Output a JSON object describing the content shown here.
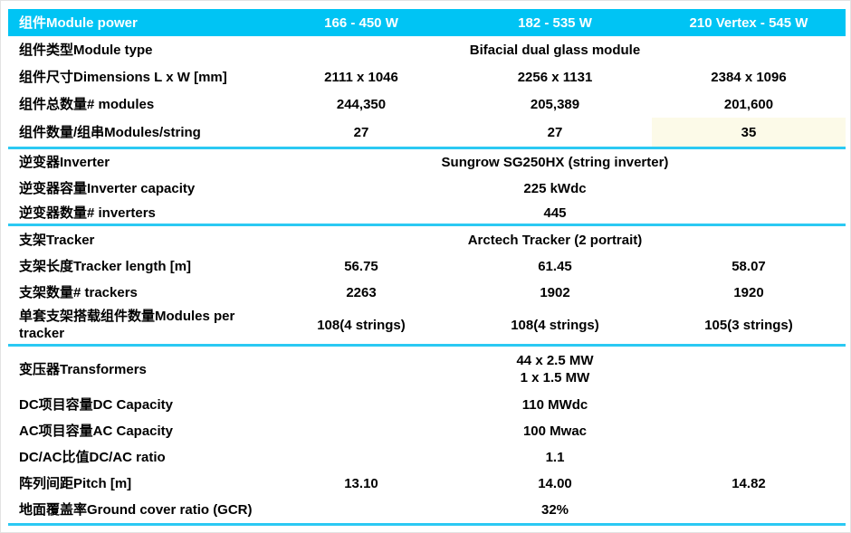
{
  "colors": {
    "header_background": "#00C4F4",
    "divider": "#2BC9F3",
    "highlight_cell": "#FCFAE8",
    "header_text": "#ffffff",
    "body_text": "#000000"
  },
  "table": {
    "header": {
      "label": "组件Module power",
      "values": [
        "166 - 450 W",
        "182 - 535 W",
        "210 Vertex - 545 W"
      ]
    },
    "rows": [
      {
        "label": "组件类型Module type",
        "span_value": "Bifacial dual glass module"
      },
      {
        "label": "组件尺寸Dimensions L x W [mm]",
        "values": [
          "2111 x 1046",
          "2256 x 1131",
          "2384 x 1096"
        ]
      },
      {
        "label": "组件总数量# modules",
        "values": [
          "244,350",
          "205,389",
          "201,600"
        ]
      },
      {
        "label": "组件数量/组串Modules/string",
        "values": [
          "27",
          "27",
          "35"
        ],
        "highlighted_column": 3
      },
      {
        "label": "逆变器Inverter",
        "span_value": "Sungrow SG250HX (string inverter)"
      },
      {
        "label": "逆变器容量Inverter capacity",
        "span_value": "225 kWdc"
      },
      {
        "label": "逆变器数量# inverters",
        "span_value": "445"
      },
      {
        "label": "支架Tracker",
        "span_value": "Arctech Tracker (2 portrait)"
      },
      {
        "label": "支架长度Tracker length [m]",
        "values": [
          "56.75",
          "61.45",
          "58.07"
        ]
      },
      {
        "label": "支架数量# trackers",
        "values": [
          "2263",
          "1902",
          "1920"
        ]
      },
      {
        "label": "单套支架搭载组件数量Modules per tracker",
        "values": [
          "108(4 strings)",
          "108(4 strings)",
          "105(3 strings)"
        ]
      },
      {
        "label": "变压器Transformers",
        "span_value": "44 x 2.5 MW\n1 x 1.5 MW"
      },
      {
        "label": "DC项目容量DC Capacity",
        "span_value": "110 MWdc"
      },
      {
        "label": "AC项目容量AC Capacity",
        "span_value": "100 Mwac"
      },
      {
        "label": "DC/AC比值DC/AC ratio",
        "span_value": "1.1"
      },
      {
        "label": "阵列间距Pitch [m]",
        "values": [
          "13.10",
          "14.00",
          "14.82"
        ]
      },
      {
        "label": "地面覆盖率Ground cover ratio (GCR)",
        "span_value": "32%"
      }
    ]
  }
}
